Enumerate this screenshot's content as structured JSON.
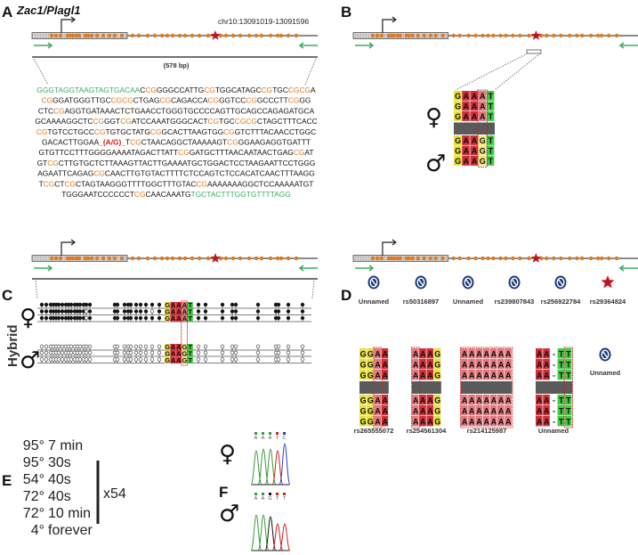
{
  "colors": {
    "cpg": "#e07a20",
    "primer": "#3cae60",
    "snp": "#d42020",
    "star": "#c0141c",
    "yellow": "#e6df3c",
    "red": "#d12f38",
    "green": "#3fcb3f",
    "grey": "#5a5a5a",
    "icon": "#1d3a78"
  },
  "panelA": {
    "label": "A",
    "gene": "Zac1/Plagl1",
    "coords": "chr10:13091019-13091596",
    "length": "(578 bp)",
    "sequence": [
      "GGGTAGGTAAGTAGTGACAACCGGGGCCATTGCGTGGCATAGCCGTGCCGCGA",
      "CGGGATGGGTTGCCGCGCTGAGCGCAGACCACGGGTCCCGGCCCTTCGGG",
      "CTCCGAGGTGATAAACTCTGAACCTGGGTGCCCCAGTTGCAGCCAGAGATGCA",
      "GCAAAAGGCTCCGGGTCGATCCAAATGGGCACTCGTGCCGCGCTAGCTTTCACC",
      "CGTGTCCTGCCCGTGTGCTATGCGGCACTTAAGTGGCGGTCTTTACAACCTGGC",
      "GACACTTGGAA_(A/G)_TCGCTAACAGGCTAAAAAGTCGGGAAGAGGTGATTT",
      "GTGTTCCTTTGGGGAAAATAGACTTATTCGGATGCTTTAACAATAACTGAGCGAT",
      "GTCGCTTGTGCTCTTAAAGTTACTTGAAAATGCTGGACTCCTAAGAATTCCTGGG",
      "AGAATTCAGAGCGCAACTTGTGTACTTTTCTCCAGTCTCCACATCAACTTTAAGG",
      "TCGCTCGCTAGTAAGGGTTTTGGCTTTGTACCGAAAAAAAGGCTCCAAAAATGT",
      "TGGGAATCCCCCCTCGCAACAAATGTGCTACTTTGGTGTTTTAGG"
    ],
    "forward_primer": "GGGTAGGTAAGTAGTGACAA",
    "reverse_primer": "TGCTACTTTGGTGTTTTAGG",
    "snp": "_(A/G)_"
  },
  "panelB": {
    "label": "B",
    "female_symbol": "♀",
    "male_symbol": "♂",
    "female_rows": [
      "GAAAT",
      "GAAAT",
      "GAAAT"
    ],
    "male_rows": [
      "GAAGT",
      "GAAGT",
      "GAAGT"
    ]
  },
  "panelC": {
    "label": "C",
    "group": "Hybrid",
    "female_symbol": "♀",
    "male_symbol": "♂",
    "female_meth": [
      "111111111111111111111111111111111111111",
      "111111111111110111111111011111111111111",
      "111111111111110111111111111111111111111"
    ],
    "male_meth": [
      "000000000000000000000000000000000000002",
      "000000000000000000000000000000000000000",
      "000000000000000000000000000000000000000"
    ],
    "female_rows": [
      "GAAAT",
      "GAAAT",
      "GAAAT"
    ],
    "male_rows": [
      "GAAGT",
      "GAAGT",
      "GAAGT"
    ]
  },
  "panelD": {
    "label": "D",
    "variants": [
      {
        "name": "Unnamed",
        "icon": "no-snp-icon"
      },
      {
        "name": "rs50316897",
        "icon": "no-snp-icon"
      },
      {
        "name": "Unnamed",
        "icon": "no-snp-icon"
      },
      {
        "name": "rs239807843",
        "icon": "no-snp-icon"
      },
      {
        "name": "rs256922784",
        "icon": "no-snp-icon"
      },
      {
        "name": "rs29364824",
        "icon": "star-icon"
      }
    ],
    "alignments": [
      {
        "name": "rs265555072",
        "seq": "GGAA"
      },
      {
        "name": "rs254561304",
        "seq": "AAAG"
      },
      {
        "name": "rs214125987",
        "seq": "AAAAAAA"
      },
      {
        "name": "Unnamed",
        "seq": "AA-TT"
      }
    ],
    "extra_variant": {
      "name": "Unnamed",
      "icon": "no-snp-icon"
    }
  },
  "panelE": {
    "label": "E",
    "steps": [
      {
        "temp": "95°",
        "time": "7 min"
      },
      {
        "temp": "95°",
        "time": "30s"
      },
      {
        "temp": "54°",
        "time": "40s"
      },
      {
        "temp": "72°",
        "time": "40s"
      },
      {
        "temp": "72°",
        "time": "10 min"
      },
      {
        "temp": "4°",
        "time": "forever"
      }
    ],
    "cycles": "x54"
  },
  "panelF": {
    "label": "F",
    "female_symbol": "♀",
    "male_symbol": "♂",
    "female_bases": "AAATC",
    "male_bases": "AAGTT"
  }
}
